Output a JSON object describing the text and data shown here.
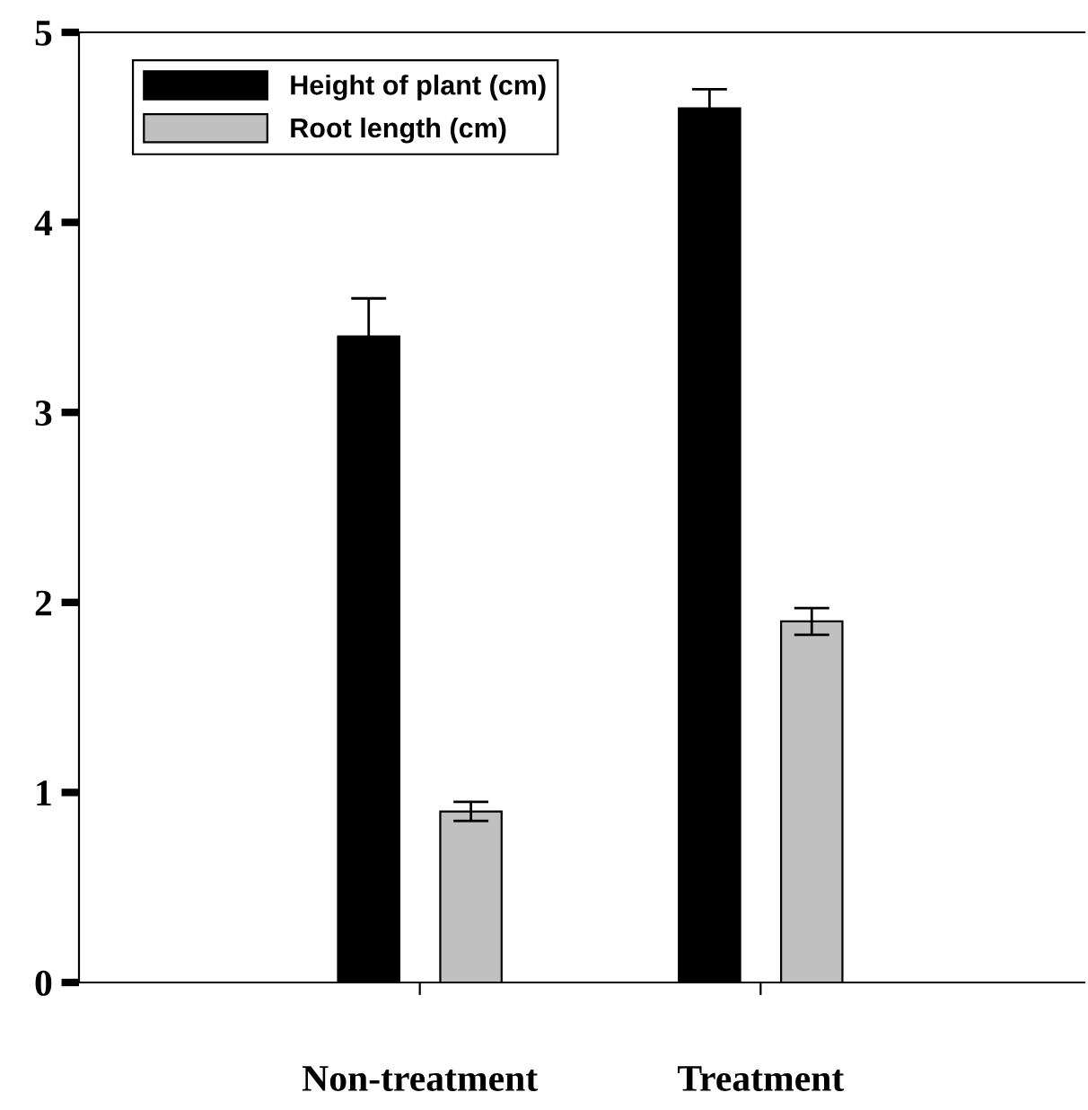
{
  "chart_data": {
    "type": "bar",
    "categories": [
      "Non-treatment",
      "Treatment"
    ],
    "series": [
      {
        "name": "Height of plant (cm)",
        "color": "#000000",
        "values": [
          3.4,
          4.6
        ],
        "errors": [
          0.2,
          0.1
        ]
      },
      {
        "name": "Root length (cm)",
        "color": "#c0c0c0",
        "values": [
          0.9,
          1.9
        ],
        "errors": [
          0.05,
          0.07
        ]
      }
    ],
    "ylim": [
      0,
      5
    ],
    "yticks": [
      0,
      1,
      2,
      3,
      4,
      5
    ],
    "grid": false,
    "legend": "top left"
  }
}
